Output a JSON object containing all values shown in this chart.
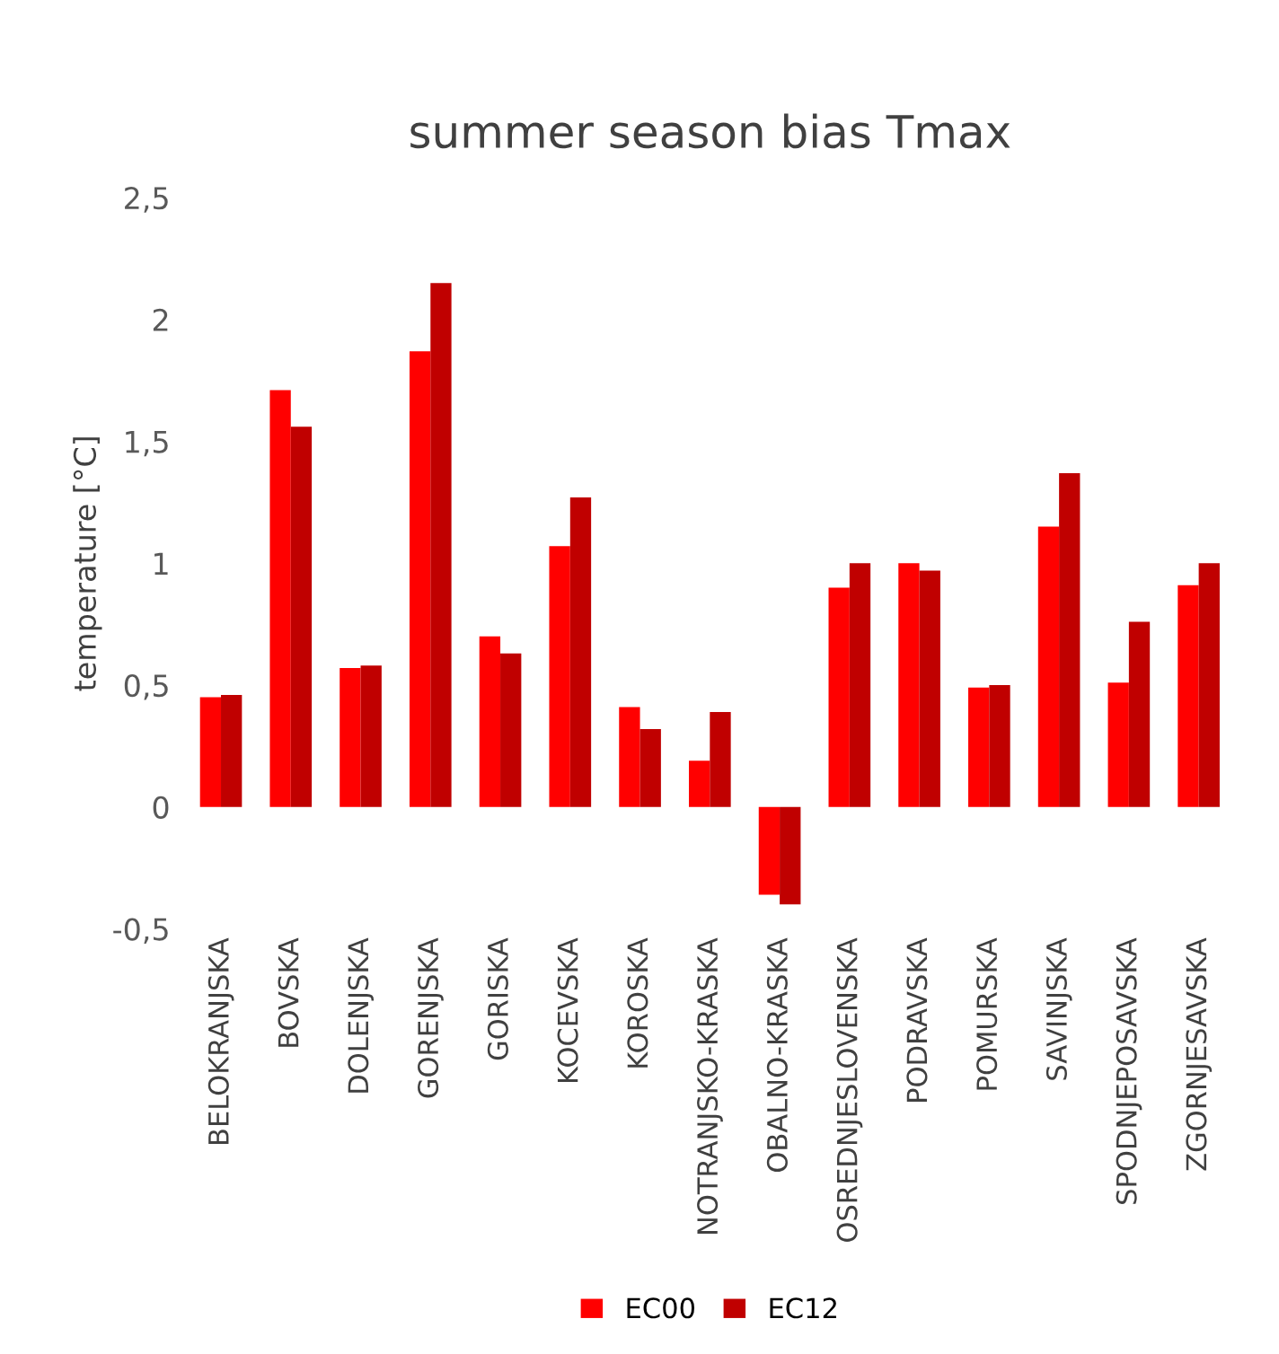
{
  "chart_data": {
    "type": "bar",
    "title": "summer season bias Tmax",
    "ylabel": "temperature [°C]",
    "categories": [
      "BELOKRANJSKA",
      "BOVSKA",
      "DOLENJSKA",
      "GORENJSKA",
      "GORISKA",
      "KOCEVSKA",
      "KOROSKA",
      "NOTRANJSKO-KRASKA",
      "OBALNO-KRASKA",
      "OSREDNJESLOVENSKA",
      "PODRAVSKA",
      "POMURSKA",
      "SAVINJSKA",
      "SPODNJEPOSAVSKA",
      "ZGORNJESAVSKA"
    ],
    "series": [
      {
        "name": "EC00",
        "color": "#ff0000",
        "values": [
          0.45,
          1.71,
          0.57,
          1.87,
          0.7,
          1.07,
          0.41,
          0.19,
          -0.36,
          0.9,
          1.0,
          0.49,
          1.15,
          0.51,
          0.91
        ]
      },
      {
        "name": "EC12",
        "color": "#c00000",
        "values": [
          0.46,
          1.56,
          0.58,
          2.15,
          0.63,
          1.27,
          0.32,
          0.39,
          -0.4,
          1.0,
          0.97,
          0.5,
          1.37,
          0.76,
          1.0
        ]
      }
    ],
    "ylim": [
      -0.5,
      2.5
    ],
    "yticks": [
      {
        "value": -0.5,
        "label": "-0,5"
      },
      0,
      {
        "value": 0.5,
        "label": "0,5"
      },
      1,
      {
        "value": 1.5,
        "label": "1,5"
      },
      2,
      {
        "value": 2.5,
        "label": "2,5"
      }
    ],
    "grid": false,
    "legend": "bottom"
  }
}
